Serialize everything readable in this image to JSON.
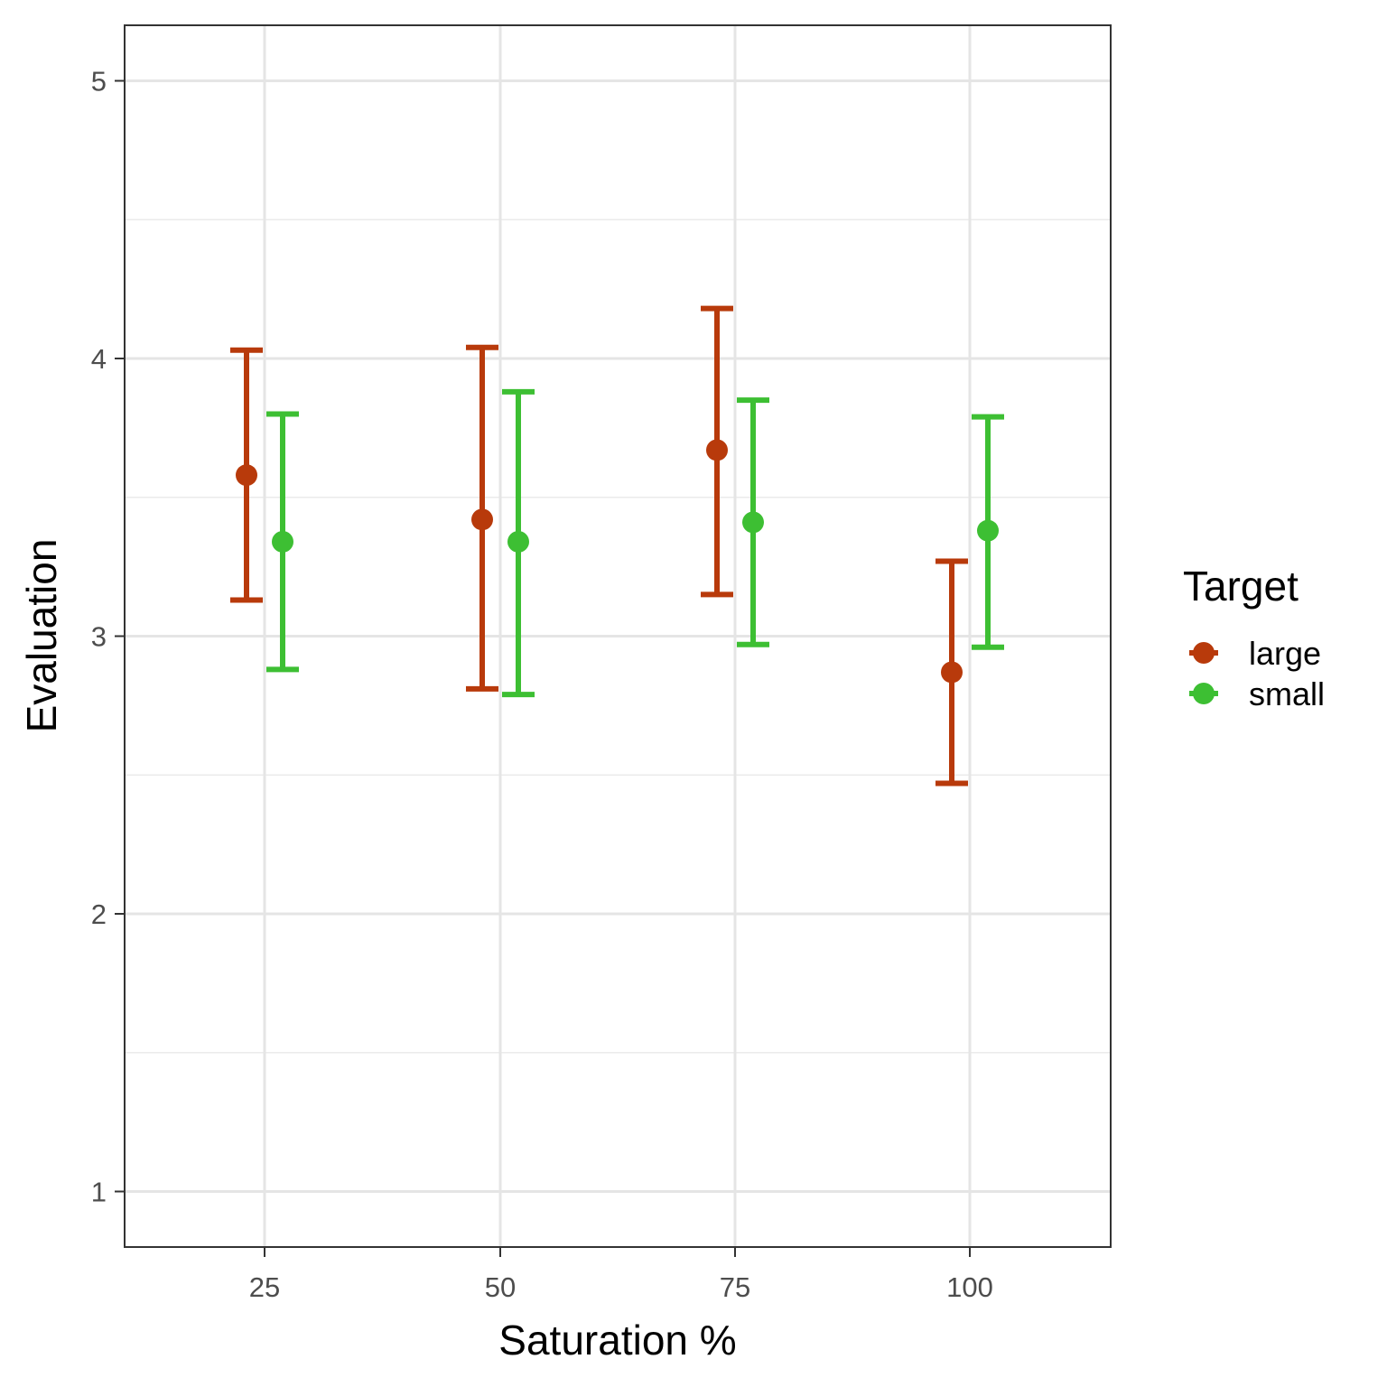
{
  "chart_data": {
    "type": "scatter",
    "xlabel": "Saturation %",
    "ylabel": "Evaluation",
    "x_categories": [
      "25",
      "50",
      "75",
      "100"
    ],
    "y_ticks": [
      1,
      2,
      3,
      4,
      5
    ],
    "ylim": [
      0.8,
      5.2
    ],
    "grid": true,
    "legend": {
      "title": "Target",
      "position": "right"
    },
    "series": [
      {
        "name": "large",
        "color": "#B83A0B",
        "points": [
          {
            "x": "25",
            "y": 3.58,
            "ymin": 3.13,
            "ymax": 4.03
          },
          {
            "x": "50",
            "y": 3.42,
            "ymin": 2.81,
            "ymax": 4.04
          },
          {
            "x": "75",
            "y": 3.67,
            "ymin": 3.15,
            "ymax": 4.18
          },
          {
            "x": "100",
            "y": 2.87,
            "ymin": 2.47,
            "ymax": 3.27
          }
        ]
      },
      {
        "name": "small",
        "color": "#3DBF33",
        "points": [
          {
            "x": "25",
            "y": 3.34,
            "ymin": 2.88,
            "ymax": 3.8
          },
          {
            "x": "50",
            "y": 3.34,
            "ymin": 2.79,
            "ymax": 3.88
          },
          {
            "x": "75",
            "y": 3.41,
            "ymin": 2.97,
            "ymax": 3.85
          },
          {
            "x": "100",
            "y": 3.38,
            "ymin": 2.96,
            "ymax": 3.79
          }
        ]
      }
    ]
  }
}
